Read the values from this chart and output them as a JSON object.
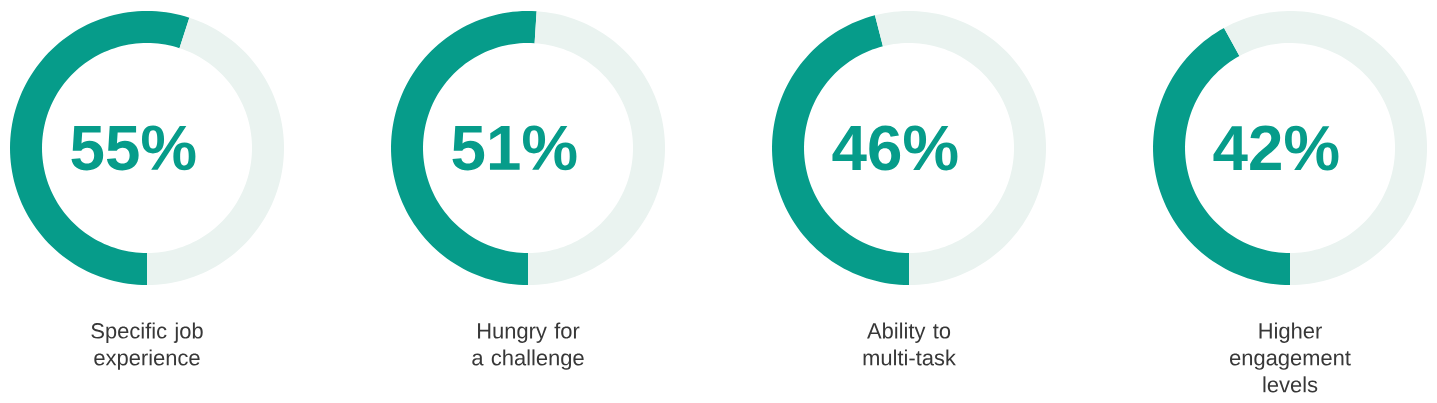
{
  "chart_data": [
    {
      "type": "donut",
      "xlabel": "Specific job experience",
      "categories": [
        null,
        null
      ],
      "values": [
        55,
        45
      ],
      "colors": [
        "#069c8a",
        "#eaf3f0"
      ],
      "value_labels": [
        "55%",
        null
      ]
    },
    {
      "type": "donut",
      "xlabel": "Hungry for a challenge",
      "categories": [
        null,
        null
      ],
      "values": [
        51,
        49
      ],
      "colors": [
        "#069c8a",
        "#eaf3f0"
      ],
      "value_labels": [
        "51%",
        null
      ]
    },
    {
      "type": "donut",
      "xlabel": "Ability to multi-task",
      "categories": [
        null,
        null
      ],
      "values": [
        46,
        54
      ],
      "colors": [
        "#069c8a",
        "#eaf3f0"
      ],
      "value_labels": [
        "46%",
        null
      ]
    },
    {
      "type": "donut",
      "xlabel": "Higher engagement levels",
      "categories": [
        null,
        null
      ],
      "values": [
        42,
        58
      ],
      "colors": [
        "#069c8a",
        "#eaf3f0"
      ],
      "value_labels": [
        "42%",
        null
      ]
    }
  ]
}
